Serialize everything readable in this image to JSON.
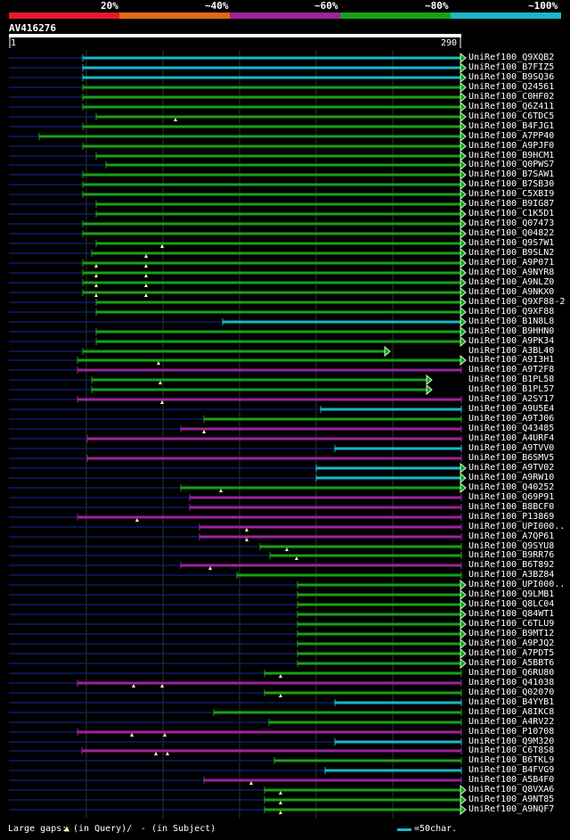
{
  "colors": {
    "scale": [
      "#e8192c",
      "#e06a18",
      "#9c249c",
      "#18a018",
      "#18b8c8"
    ],
    "hit": {
      "red": "#e8192c",
      "orange": "#e06a18",
      "magenta": "#9c249c",
      "green": "#18a018",
      "cyan": "#18b8c8"
    },
    "gap_line": "#0c1c6a",
    "grid": "#283828",
    "marker": "#ffffb0"
  },
  "identity_scale": [
    "20%",
    "~40%",
    "~60%",
    "~80%",
    "~100%"
  ],
  "query": {
    "name": "AV416276",
    "start": "1",
    "end": "290"
  },
  "legend": {
    "large_gaps_label": "Large gaps:",
    "in_query": "(in Query)/",
    "in_subject": "- (in Subject)",
    "scale_note": "=50char."
  },
  "hits": [
    {
      "label": "UniRef100_Q9XQB2",
      "color": "cyan",
      "start": 93,
      "end": 518,
      "mark": "tri",
      "markers": []
    },
    {
      "label": "UniRef100_B7FIZ5",
      "color": "cyan",
      "start": 93,
      "end": 518,
      "mark": "tri",
      "markers": []
    },
    {
      "label": "UniRef100_B9SQ36",
      "color": "cyan",
      "start": 93,
      "end": 518,
      "mark": "tri",
      "markers": []
    },
    {
      "label": "UniRef100_Q24561",
      "color": "green",
      "start": 93,
      "end": 518,
      "mark": "tri",
      "markers": []
    },
    {
      "label": "UniRef100_C0HF02",
      "color": "green",
      "start": 93,
      "end": 518,
      "mark": "tri",
      "markers": []
    },
    {
      "label": "UniRef100_Q6Z411",
      "color": "green",
      "start": 93,
      "end": 518,
      "mark": "tri",
      "markers": []
    },
    {
      "label": "UniRef100_C6TDC5",
      "color": "green",
      "start": 108,
      "end": 518,
      "mark": "tri",
      "markers": [
        197
      ]
    },
    {
      "label": "UniRef100_B4FJG1",
      "color": "green",
      "start": 93,
      "end": 518,
      "mark": "tri",
      "markers": []
    },
    {
      "label": "UniRef100_A7PP40",
      "color": "green",
      "start": 44,
      "end": 518,
      "mark": "tri",
      "markers": []
    },
    {
      "label": "UniRef100_A9PJF0",
      "color": "green",
      "start": 93,
      "end": 518,
      "mark": "tri",
      "markers": []
    },
    {
      "label": "UniRef100_B9HCM1",
      "color": "green",
      "start": 108,
      "end": 518,
      "mark": "tri",
      "markers": []
    },
    {
      "label": "UniRef100_Q0PWS7",
      "color": "green",
      "start": 119,
      "end": 518,
      "mark": "tri",
      "markers": []
    },
    {
      "label": "UniRef100_B7SAW1",
      "color": "green",
      "start": 93,
      "end": 518,
      "mark": "tri",
      "markers": []
    },
    {
      "label": "UniRef100_B7SB30",
      "color": "green",
      "start": 93,
      "end": 518,
      "mark": "tri",
      "markers": []
    },
    {
      "label": "UniRef100_C5XBI9",
      "color": "green",
      "start": 93,
      "end": 518,
      "mark": "tri",
      "markers": []
    },
    {
      "label": "UniRef100_B9IG87",
      "color": "green",
      "start": 108,
      "end": 518,
      "mark": "tri",
      "markers": []
    },
    {
      "label": "UniRef100_C1K5D1",
      "color": "green",
      "start": 108,
      "end": 518,
      "mark": "tri",
      "markers": []
    },
    {
      "label": "UniRef100_Q07473",
      "color": "green",
      "start": 93,
      "end": 518,
      "mark": "tri",
      "markers": []
    },
    {
      "label": "UniRef100_Q04822",
      "color": "green",
      "start": 93,
      "end": 518,
      "mark": "tri",
      "markers": []
    },
    {
      "label": "UniRef100_Q9S7W1",
      "color": "green",
      "start": 108,
      "end": 518,
      "mark": "tri",
      "markers": [
        182
      ]
    },
    {
      "label": "UniRef100_B9SLN2",
      "color": "green",
      "start": 103,
      "end": 518,
      "mark": "tri",
      "markers": [
        164
      ]
    },
    {
      "label": "UniRef100_A9P071",
      "color": "green",
      "start": 93,
      "end": 518,
      "mark": "tri",
      "markers": [
        108,
        164
      ]
    },
    {
      "label": "UniRef100_A9NYR8",
      "color": "green",
      "start": 93,
      "end": 518,
      "mark": "tri",
      "markers": [
        108,
        164
      ]
    },
    {
      "label": "UniRef100_A9NLZ0",
      "color": "green",
      "start": 93,
      "end": 518,
      "mark": "tri",
      "markers": [
        108,
        164
      ]
    },
    {
      "label": "UniRef100_A9NKX0",
      "color": "green",
      "start": 93,
      "end": 518,
      "mark": "tri",
      "markers": [
        108,
        164
      ]
    },
    {
      "label": "UniRef100_Q9XF88-2",
      "color": "green",
      "start": 108,
      "end": 518,
      "mark": "tri",
      "markers": []
    },
    {
      "label": "UniRef100_Q9XF88",
      "color": "green",
      "start": 108,
      "end": 518,
      "mark": "tri",
      "markers": []
    },
    {
      "label": "UniRef100_B1N8L8",
      "color": "cyan",
      "start": 250,
      "end": 518,
      "mark": "tri",
      "markers": []
    },
    {
      "label": "UniRef100_B9HHN0",
      "color": "green",
      "start": 108,
      "end": 518,
      "mark": "tri",
      "markers": []
    },
    {
      "label": "UniRef100_A9PK34",
      "color": "green",
      "start": 108,
      "end": 518,
      "mark": "tri",
      "markers": []
    },
    {
      "label": "UniRef100_A3BL40",
      "color": "green",
      "start": 93,
      "end": 433,
      "mark": "tri",
      "markers": []
    },
    {
      "label": "UniRef100_A9I3H1",
      "color": "green",
      "start": 87,
      "end": 518,
      "mark": "tri",
      "markers": [
        178
      ]
    },
    {
      "label": "UniRef100_A9T2F8",
      "color": "magenta",
      "start": 87,
      "end": 518,
      "mark": "bar",
      "markers": []
    },
    {
      "label": "UniRef100_B1PL58",
      "color": "green",
      "start": 103,
      "end": 480,
      "mark": "tri",
      "markers": [
        180
      ]
    },
    {
      "label": "UniRef100_B1PL57",
      "color": "green",
      "start": 103,
      "end": 480,
      "mark": "tri",
      "markers": []
    },
    {
      "label": "UniRef100_A2SY17",
      "color": "magenta",
      "start": 87,
      "end": 518,
      "mark": "bar",
      "markers": [
        182
      ]
    },
    {
      "label": "UniRef100_A9U5E4",
      "color": "cyan",
      "start": 360,
      "end": 518,
      "mark": "bar",
      "markers": []
    },
    {
      "label": "UniRef100_A9TJ06",
      "color": "green",
      "start": 229,
      "end": 518,
      "mark": "bar",
      "markers": []
    },
    {
      "label": "UniRef100_Q43485",
      "color": "magenta",
      "start": 203,
      "end": 518,
      "mark": "bar",
      "markers": [
        229
      ]
    },
    {
      "label": "UniRef100_A4URF4",
      "color": "magenta",
      "start": 98,
      "end": 518,
      "mark": "bar",
      "markers": []
    },
    {
      "label": "UniRef100_A9TVV0",
      "color": "cyan",
      "start": 376,
      "end": 518,
      "mark": "bar",
      "markers": []
    },
    {
      "label": "UniRef100_B6SMV5",
      "color": "magenta",
      "start": 98,
      "end": 518,
      "mark": "bar",
      "markers": []
    },
    {
      "label": "UniRef100_A9TV02",
      "color": "cyan",
      "start": 355,
      "end": 518,
      "mark": "tri",
      "markers": []
    },
    {
      "label": "UniRef100_A9RW10",
      "color": "cyan",
      "start": 355,
      "end": 518,
      "mark": "tri",
      "markers": []
    },
    {
      "label": "UniRef100_Q40252",
      "color": "green",
      "start": 203,
      "end": 518,
      "mark": "tri",
      "markers": [
        248
      ]
    },
    {
      "label": "UniRef100_Q69P91",
      "color": "magenta",
      "start": 213,
      "end": 518,
      "mark": "bar",
      "markers": []
    },
    {
      "label": "UniRef100_B8BCF0",
      "color": "magenta",
      "start": 213,
      "end": 518,
      "mark": "bar",
      "markers": []
    },
    {
      "label": "UniRef100_P13869",
      "color": "magenta",
      "start": 87,
      "end": 518,
      "mark": "bar",
      "markers": [
        154
      ]
    },
    {
      "label": "UniRef100_UPI000..",
      "color": "magenta",
      "start": 224,
      "end": 518,
      "mark": "bar",
      "markers": [
        277
      ]
    },
    {
      "label": "UniRef100_A7QP61",
      "color": "magenta",
      "start": 224,
      "end": 518,
      "mark": "bar",
      "markers": [
        277
      ]
    },
    {
      "label": "UniRef100_Q9SYU8",
      "color": "green",
      "start": 292,
      "end": 518,
      "mark": "bar",
      "markers": [
        322
      ]
    },
    {
      "label": "UniRef100_B9RR76",
      "color": "green",
      "start": 303,
      "end": 518,
      "mark": "bar",
      "markers": [
        333
      ]
    },
    {
      "label": "UniRef100_B6T892",
      "color": "magenta",
      "start": 203,
      "end": 518,
      "mark": "bar",
      "markers": [
        236
      ]
    },
    {
      "label": "UniRef100_A3BZ84",
      "color": "green",
      "start": 266,
      "end": 518,
      "mark": "bar",
      "markers": []
    },
    {
      "label": "UniRef100_UPI000..",
      "color": "green",
      "start": 334,
      "end": 518,
      "mark": "tri",
      "markers": []
    },
    {
      "label": "UniRef100_Q9LMB1",
      "color": "green",
      "start": 334,
      "end": 518,
      "mark": "tri",
      "markers": []
    },
    {
      "label": "UniRef100_Q8LC04",
      "color": "green",
      "start": 334,
      "end": 518,
      "mark": "tri",
      "markers": []
    },
    {
      "label": "UniRef100_Q84WT1",
      "color": "green",
      "start": 334,
      "end": 518,
      "mark": "tri",
      "markers": []
    },
    {
      "label": "UniRef100_C6TLU9",
      "color": "green",
      "start": 334,
      "end": 518,
      "mark": "tri",
      "markers": []
    },
    {
      "label": "UniRef100_B9MT12",
      "color": "green",
      "start": 334,
      "end": 518,
      "mark": "tri",
      "markers": []
    },
    {
      "label": "UniRef100_A9PJQ2",
      "color": "green",
      "start": 334,
      "end": 518,
      "mark": "tri",
      "markers": []
    },
    {
      "label": "UniRef100_A7PDT5",
      "color": "green",
      "start": 334,
      "end": 518,
      "mark": "tri",
      "markers": []
    },
    {
      "label": "UniRef100_A5BBT6",
      "color": "green",
      "start": 334,
      "end": 518,
      "mark": "tri",
      "markers": []
    },
    {
      "label": "UniRef100_Q6RU80",
      "color": "green",
      "start": 297,
      "end": 518,
      "mark": "bar",
      "markers": [
        315
      ]
    },
    {
      "label": "UniRef100_Q41038",
      "color": "magenta",
      "start": 87,
      "end": 518,
      "mark": "bar",
      "markers": [
        150,
        182
      ]
    },
    {
      "label": "UniRef100_Q02070",
      "color": "green",
      "start": 297,
      "end": 518,
      "mark": "bar",
      "markers": [
        315
      ]
    },
    {
      "label": "UniRef100_B4YYB1",
      "color": "cyan",
      "start": 376,
      "end": 518,
      "mark": "bar",
      "markers": []
    },
    {
      "label": "UniRef100_A8IKC8",
      "color": "green",
      "start": 240,
      "end": 518,
      "mark": "bar",
      "markers": []
    },
    {
      "label": "UniRef100_A4RV22",
      "color": "green",
      "start": 302,
      "end": 518,
      "mark": "bar",
      "markers": []
    },
    {
      "label": "UniRef100_P10708",
      "color": "magenta",
      "start": 87,
      "end": 518,
      "mark": "bar",
      "markers": [
        148,
        185
      ]
    },
    {
      "label": "UniRef100_Q9M320",
      "color": "cyan",
      "start": 376,
      "end": 518,
      "mark": "bar",
      "markers": []
    },
    {
      "label": "UniRef100_C6T8S8",
      "color": "magenta",
      "start": 92,
      "end": 518,
      "mark": "bar",
      "markers": [
        175,
        188
      ]
    },
    {
      "label": "UniRef100_B6TKL9",
      "color": "green",
      "start": 308,
      "end": 518,
      "mark": "bar",
      "markers": []
    },
    {
      "label": "UniRef100_B4FVG9",
      "color": "cyan",
      "start": 365,
      "end": 518,
      "mark": "bar",
      "markers": []
    },
    {
      "label": "UniRef100_A5B4F0",
      "color": "magenta",
      "start": 229,
      "end": 518,
      "mark": "bar",
      "markers": [
        282
      ]
    },
    {
      "label": "UniRef100_Q8VXA6",
      "color": "green",
      "start": 297,
      "end": 518,
      "mark": "tri",
      "markers": [
        315
      ]
    },
    {
      "label": "UniRef100_A9NT85",
      "color": "green",
      "start": 297,
      "end": 518,
      "mark": "tri",
      "markers": [
        315
      ]
    },
    {
      "label": "UniRef100_A9NQF7",
      "color": "green",
      "start": 297,
      "end": 518,
      "mark": "tri",
      "markers": [
        315
      ]
    }
  ]
}
